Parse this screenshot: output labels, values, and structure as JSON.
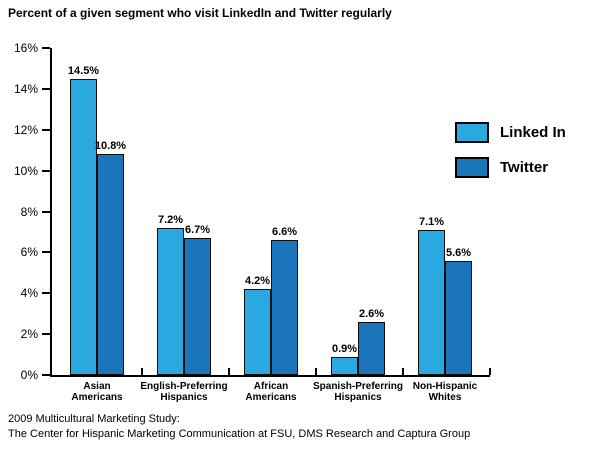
{
  "title": "Percent of a given segment who visit LinkedIn and Twitter regularly",
  "chart_data": {
    "type": "bar",
    "title": "Percent of a given segment who visit LinkedIn and Twitter regularly",
    "categories": [
      "Asian Americans",
      "English-Preferring Hispanics",
      "African Americans",
      "Spanish-Preferring Hispanics",
      "Non-Hispanic Whites"
    ],
    "category_label_lines": [
      [
        "Asian",
        "Americans"
      ],
      [
        "English-Preferring",
        "Hispanics"
      ],
      [
        "African",
        "Americans"
      ],
      [
        "Spanish-Preferring",
        "Hispanics"
      ],
      [
        "Non-Hispanic",
        "Whites"
      ]
    ],
    "series": [
      {
        "name": "Linked In",
        "color": "#29A9E0",
        "values": [
          14.5,
          7.2,
          4.2,
          0.9,
          7.1
        ]
      },
      {
        "name": "Twitter",
        "color": "#1B75BB",
        "values": [
          10.8,
          6.7,
          6.6,
          2.6,
          5.6
        ]
      }
    ],
    "data_labels": [
      [
        "14.5%",
        "7.2%",
        "4.2%",
        "0.9%",
        "7.1%"
      ],
      [
        "10.8%",
        "6.7%",
        "6.6%",
        "2.6%",
        "5.6%"
      ]
    ],
    "xlabel": "",
    "ylabel": "",
    "ylim": [
      0,
      16
    ],
    "ytick_step": 2,
    "ytick_labels": [
      "0%",
      "2%",
      "4%",
      "6%",
      "8%",
      "10%",
      "12%",
      "14%",
      "16%"
    ],
    "grid": false,
    "legend_position": "right",
    "bar_outline_color": "#0d0d0d"
  },
  "footer": {
    "line1": "2009 Multicultural Marketing Study:",
    "line2": "The Center for Hispanic Marketing Communication at FSU, DMS Research and Captura Group"
  }
}
